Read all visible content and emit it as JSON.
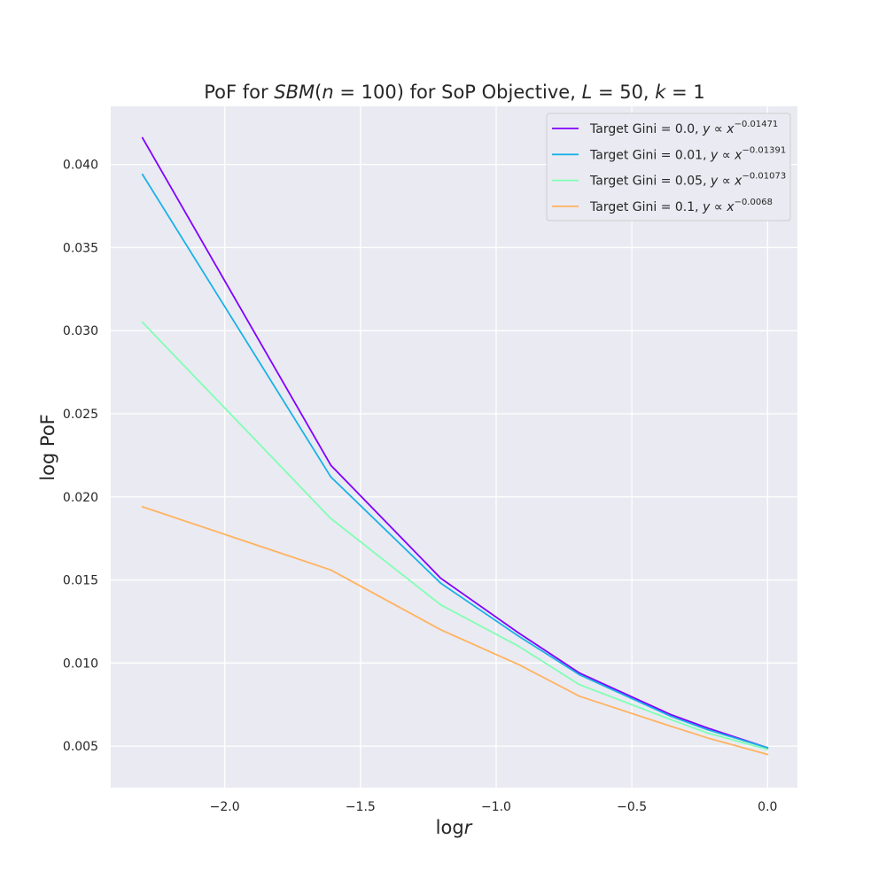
{
  "chart_data": {
    "type": "line",
    "title": {
      "prefix": "PoF for ",
      "model": "SBM",
      "paren_open": "(",
      "n_var": "n",
      "n_eq": " = 100",
      "paren_close": ")",
      "middle": " for SoP Objective, ",
      "L_var": "L",
      "L_eq": " = 50, ",
      "k_var": "k",
      "k_eq": " = 1"
    },
    "xlabel": {
      "text": "log",
      "var": "r"
    },
    "ylabel": "log PoF",
    "xlim": [
      -2.42,
      0.11
    ],
    "ylim": [
      0.0025,
      0.0435
    ],
    "xticks": [
      -2.0,
      -1.5,
      -1.0,
      -0.5,
      0.0
    ],
    "xtick_labels": [
      "−2.0",
      "−1.5",
      "−1.0",
      "−0.5",
      "0.0"
    ],
    "yticks": [
      0.005,
      0.01,
      0.015,
      0.02,
      0.025,
      0.03,
      0.035,
      0.04
    ],
    "ytick_labels": [
      "0.005",
      "0.010",
      "0.015",
      "0.020",
      "0.025",
      "0.030",
      "0.035",
      "0.040"
    ],
    "grid": true,
    "legend_position": "top-right",
    "x": [
      -2.303,
      -1.609,
      -1.204,
      -0.916,
      -0.693,
      -0.357,
      -0.223,
      0.0
    ],
    "series": [
      {
        "name_prefix": "Target Gini = 0.0, ",
        "name_y": "y",
        "name_prop": " ∝ ",
        "name_x": "x",
        "exponent": "−0.01471",
        "color": "#8000ff",
        "values": [
          0.0416,
          0.0219,
          0.0151,
          0.0118,
          0.0094,
          0.0069,
          0.0061,
          0.0049
        ]
      },
      {
        "name_prefix": "Target Gini = 0.01, ",
        "name_y": "y",
        "name_prop": " ∝ ",
        "name_x": "x",
        "exponent": "−0.01391",
        "color": "#1ab2e6",
        "values": [
          0.0394,
          0.0212,
          0.0148,
          0.0116,
          0.0093,
          0.0068,
          0.006,
          0.0049
        ]
      },
      {
        "name_prefix": "Target Gini = 0.05, ",
        "name_y": "y",
        "name_prop": " ∝ ",
        "name_x": "x",
        "exponent": "−0.01073",
        "color": "#80ffb4",
        "values": [
          0.0305,
          0.0187,
          0.0135,
          0.011,
          0.0087,
          0.0066,
          0.0058,
          0.0048
        ]
      },
      {
        "name_prefix": "Target Gini = 0.1, ",
        "name_y": "y",
        "name_prop": " ∝ ",
        "name_x": "x",
        "exponent": "−0.0068",
        "color": "#ffb360",
        "values": [
          0.0194,
          0.0156,
          0.012,
          0.0099,
          0.008,
          0.0062,
          0.0055,
          0.0045
        ]
      }
    ]
  }
}
